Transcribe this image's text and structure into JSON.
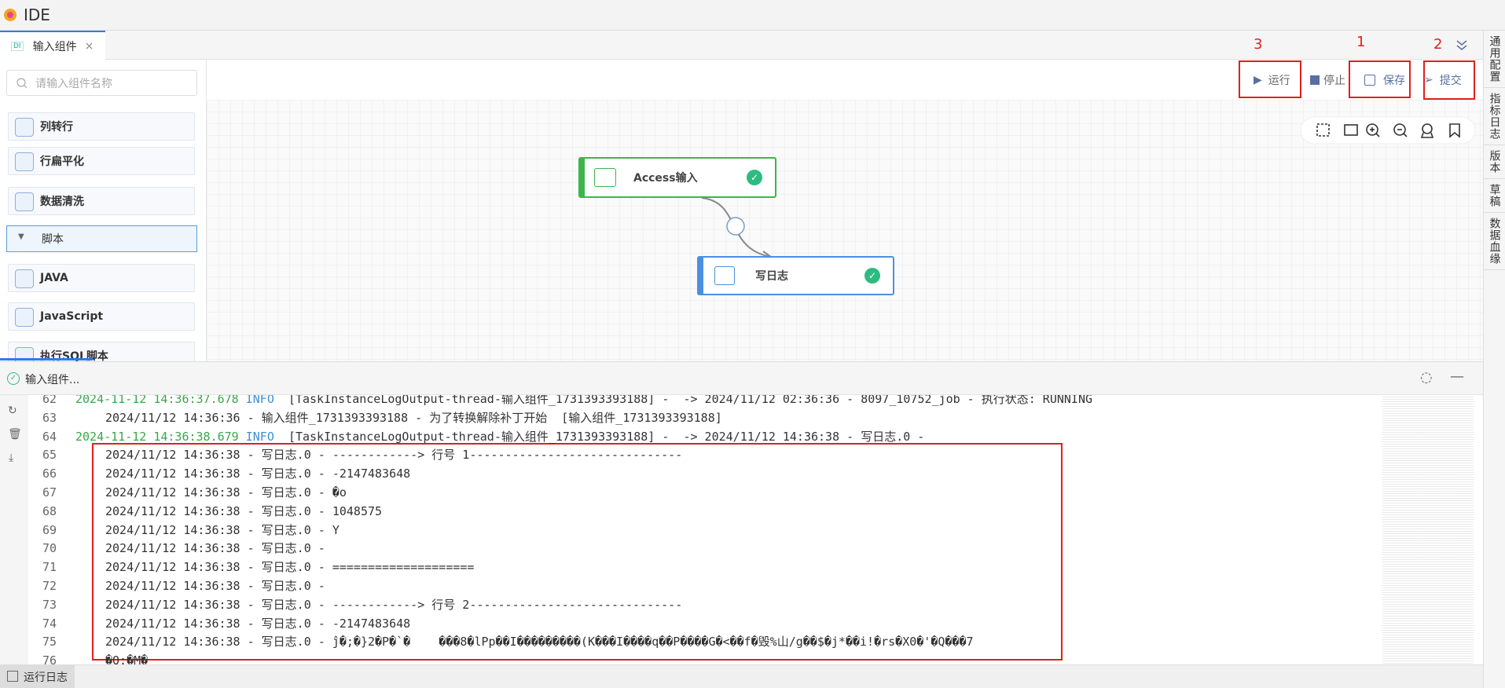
{
  "app": {
    "title": "IDE"
  },
  "tab": {
    "label": "输入组件"
  },
  "sidebar": {
    "search_placeholder": "请输入组件名称",
    "items": [
      "列转行",
      "行扁平化",
      "数据清洗"
    ],
    "group": "脚本",
    "group_items": [
      "JAVA",
      "JavaScript",
      "执行SQL脚本"
    ]
  },
  "toolbar": {
    "run": "运行",
    "stop": "停止",
    "save": "保存",
    "submit": "提交",
    "annotations": {
      "run": "3",
      "save": "1",
      "submit": "2"
    }
  },
  "canvas": {
    "nodes": [
      {
        "label": "Access输入"
      },
      {
        "label": "写日志"
      }
    ]
  },
  "right_tabs": [
    "通用配置",
    "指标日志",
    "版本",
    "草稿",
    "数据血缘"
  ],
  "log": {
    "title": "输入组件...",
    "lines": [
      {
        "no": 62,
        "time": "2024-11-12 14:36:37.678",
        "level": "INFO",
        "text": "[TaskInstanceLogOutput-thread-输入组件_1731393393188] -  -> 2024/11/12 02:36:36 - 8097_10752_job - 执行状态: RUNNING"
      },
      {
        "no": 63,
        "text": "2024/11/12 14:36:36 - 输入组件_1731393393188 - 为了转换解除补丁开始  [输入组件_1731393393188]"
      },
      {
        "no": 64,
        "time": "2024-11-12 14:36:38.679",
        "level": "INFO",
        "text": "[TaskInstanceLogOutput-thread-输入组件_1731393393188] -  -> 2024/11/12 14:36:38 - 写日志.0 -"
      },
      {
        "no": 65,
        "text": "2024/11/12 14:36:38 - 写日志.0 - ------------> 行号 1------------------------------"
      },
      {
        "no": 66,
        "text": "2024/11/12 14:36:38 - 写日志.0 - -2147483648"
      },
      {
        "no": 67,
        "text": "2024/11/12 14:36:38 - 写日志.0 - �o"
      },
      {
        "no": 68,
        "text": "2024/11/12 14:36:38 - 写日志.0 - 1048575"
      },
      {
        "no": 69,
        "text": "2024/11/12 14:36:38 - 写日志.0 - Y"
      },
      {
        "no": 70,
        "text": "2024/11/12 14:36:38 - 写日志.0 -"
      },
      {
        "no": 71,
        "text": "2024/11/12 14:36:38 - 写日志.0 - ===================="
      },
      {
        "no": 72,
        "text": "2024/11/12 14:36:38 - 写日志.0 -"
      },
      {
        "no": 73,
        "text": "2024/11/12 14:36:38 - 写日志.0 - ------------> 行号 2------------------------------"
      },
      {
        "no": 74,
        "text": "2024/11/12 14:36:38 - 写日志.0 - -2147483648"
      },
      {
        "no": 75,
        "text": "2024/11/12 14:36:38 - 写日志.0 - ĵ�;�}2�P�`�    ���8�lPp��I���������(K���I����q��P����G�<��f�毁%山/g��$�j*��i!�rs�X0�'�Q���7"
      },
      {
        "no": 76,
        "text": "�Q:�M�"
      }
    ]
  },
  "footer": {
    "tab": "运行日志"
  }
}
